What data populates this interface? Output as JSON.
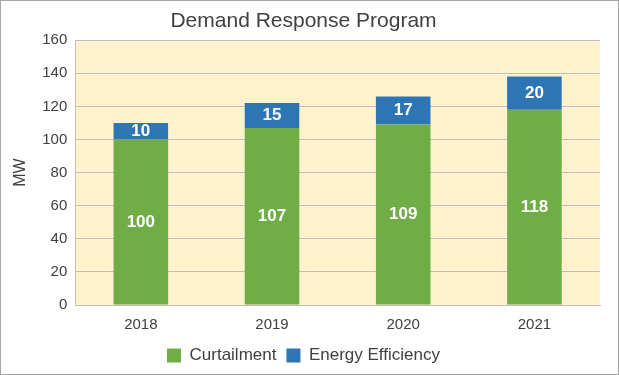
{
  "chart_data": {
    "type": "bar",
    "title": "Demand Response Program",
    "y_label": "MW",
    "categories": [
      "2018",
      "2019",
      "2020",
      "2021"
    ],
    "series": [
      {
        "name": "Curtailment",
        "color": "#70ad47",
        "values": [
          100,
          107,
          109,
          118
        ]
      },
      {
        "name": "Energy Efficiency",
        "color": "#2e75b6",
        "values": [
          10,
          15,
          17,
          20
        ]
      }
    ],
    "stacked": true,
    "data_labels": true,
    "legend": "bottom",
    "grid": true,
    "ylim": [
      0,
      160
    ],
    "yticks": [
      0,
      20,
      40,
      60,
      80,
      100,
      120,
      140,
      160
    ]
  }
}
